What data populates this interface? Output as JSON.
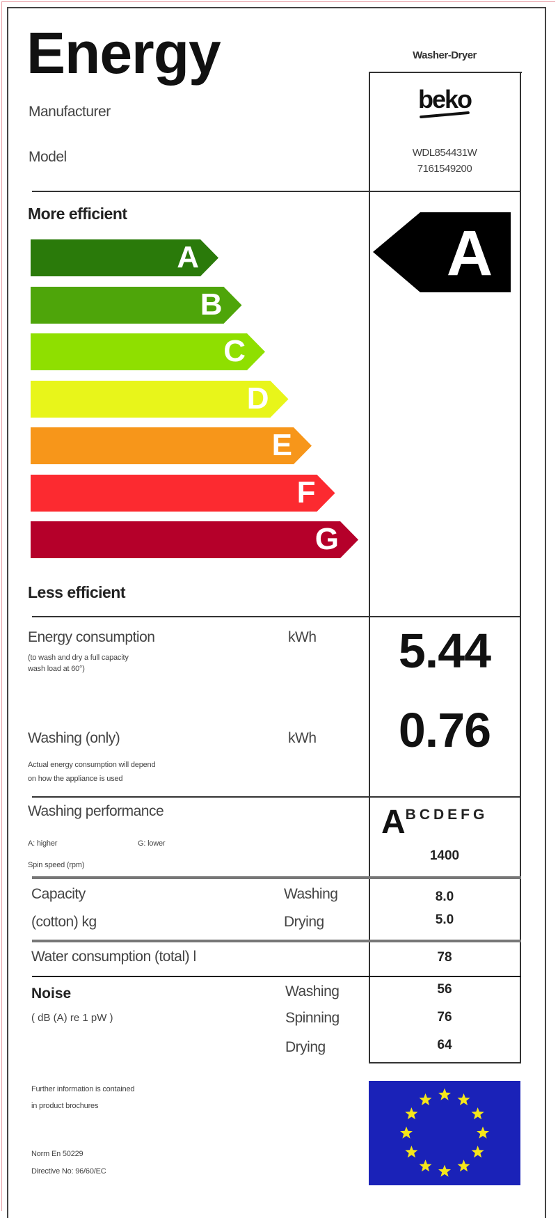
{
  "header": {
    "title": "Energy",
    "appliance_type": "Washer-Dryer",
    "manufacturer_label": "Manufacturer",
    "model_label": "Model"
  },
  "product": {
    "brand": "beko",
    "model": "WDL854431W",
    "code": "7161549200"
  },
  "scale": {
    "more_label": "More efficient",
    "less_label": "Less efficient",
    "classes": [
      {
        "letter": "A",
        "color": "#2a7a0a"
      },
      {
        "letter": "B",
        "color": "#4ea50a"
      },
      {
        "letter": "C",
        "color": "#8fdf00"
      },
      {
        "letter": "D",
        "color": "#e8f51a"
      },
      {
        "letter": "E",
        "color": "#f7961a"
      },
      {
        "letter": "F",
        "color": "#fc2a30"
      },
      {
        "letter": "G",
        "color": "#b5002a"
      }
    ],
    "rating": "A"
  },
  "energy": {
    "label": "Energy consumption",
    "unit": "kWh",
    "note1": "(to wash and dry a full capacity",
    "note2": "wash load at  60°)",
    "value": "5.44",
    "washing_label": "Washing (only)",
    "washing_unit": "kWh",
    "washing_value": "0.76",
    "washing_note1": "Actual energy consumption will depend",
    "washing_note2": "on how the appliance is used"
  },
  "performance": {
    "label": "Washing performance",
    "higher": "A: higher",
    "lower": "G: lower",
    "spin_label": "Spin speed (rpm)",
    "rating": "A",
    "other_classes": "BCDEFG",
    "spin_value": "1400"
  },
  "capacity": {
    "label1": "Capacity",
    "label2": "(cotton) kg",
    "washing_label": "Washing",
    "drying_label": "Drying",
    "washing_value": "8.0",
    "drying_value": "5.0"
  },
  "water": {
    "label": "Water consumption (total) l",
    "value": "78"
  },
  "noise": {
    "label": "Noise",
    "unit": "( dB (A) re 1 pW )",
    "washing_label": "Washing",
    "spinning_label": "Spinning",
    "drying_label": "Drying",
    "washing_value": "56",
    "spinning_value": "76",
    "drying_value": "64"
  },
  "footer": {
    "info1": "Further information is contained",
    "info2": "in product brochures",
    "norm": "Norm En 50229",
    "directive": "Directive No: 96/60/EC"
  },
  "colors": {
    "eu_blue": "#1a22b8",
    "eu_star": "#f5e61a"
  }
}
